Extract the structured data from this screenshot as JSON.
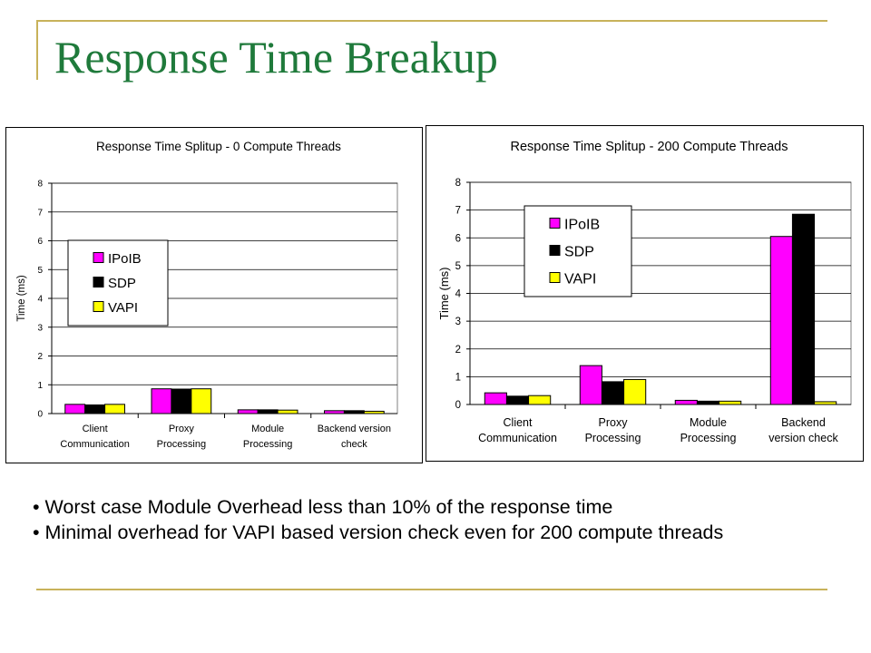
{
  "slide": {
    "title": "Response Time Breakup",
    "bullets": [
      "Worst case Module Overhead  less than 10% of the response time",
      "Minimal overhead for VAPI based version check even for 200 compute threads"
    ],
    "bullet_marker": "•"
  },
  "colors": {
    "title": "#1f7a3b",
    "accent_line": "#c8b25a",
    "IPoIB": "#ff00ff",
    "SDP": "#000000",
    "VAPI": "#ffff00"
  },
  "chart_data": [
    {
      "type": "bar",
      "title": "Response Time Splitup - 0 Compute Threads",
      "ylabel": "Time (ms)",
      "xlabel": "",
      "ylim": [
        0,
        8
      ],
      "yticks": [
        "0",
        "1",
        "2",
        "3",
        "4",
        "5",
        "6",
        "7",
        "8"
      ],
      "grid": true,
      "legend_position": "left",
      "categories": [
        [
          "Client",
          "Communication"
        ],
        [
          "Proxy",
          "Processing"
        ],
        [
          "Module",
          "Processing"
        ],
        [
          "Backend version",
          "check"
        ]
      ],
      "series": [
        {
          "name": "IPoIB",
          "values": [
            0.32,
            0.86,
            0.13,
            0.1
          ]
        },
        {
          "name": "SDP",
          "values": [
            0.3,
            0.85,
            0.13,
            0.1
          ]
        },
        {
          "name": "VAPI",
          "values": [
            0.32,
            0.86,
            0.12,
            0.08
          ]
        }
      ]
    },
    {
      "type": "bar",
      "title": "Response Time Splitup - 200 Compute Threads",
      "ylabel": "Time (ms)",
      "xlabel": "",
      "ylim": [
        0,
        8
      ],
      "yticks": [
        "0",
        "1",
        "2",
        "3",
        "4",
        "5",
        "6",
        "7",
        "8"
      ],
      "grid": true,
      "legend_position": "upper-left",
      "categories": [
        [
          "Client",
          "Communication"
        ],
        [
          "Proxy",
          "Processing"
        ],
        [
          "Module",
          "Processing"
        ],
        [
          "Backend",
          "version check"
        ]
      ],
      "series": [
        {
          "name": "IPoIB",
          "values": [
            0.42,
            1.4,
            0.15,
            6.05
          ]
        },
        {
          "name": "SDP",
          "values": [
            0.3,
            0.82,
            0.12,
            6.85
          ]
        },
        {
          "name": "VAPI",
          "values": [
            0.32,
            0.9,
            0.12,
            0.1
          ]
        }
      ]
    }
  ]
}
